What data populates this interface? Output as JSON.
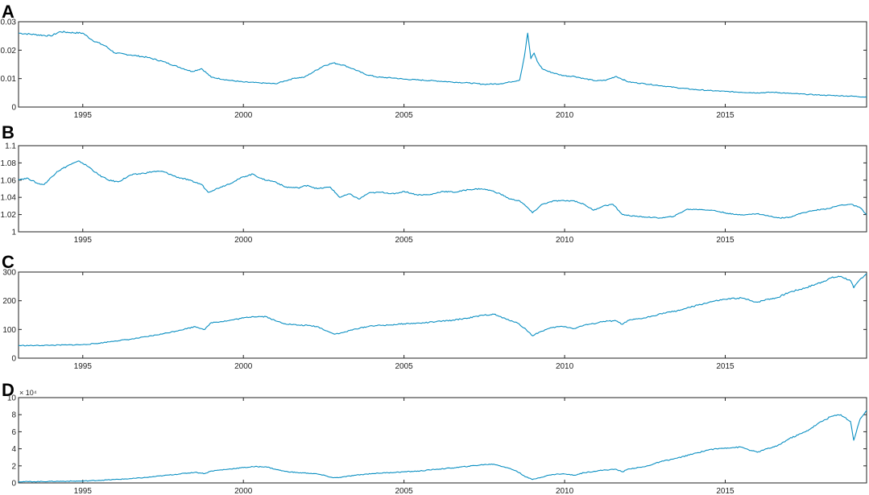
{
  "colors": {
    "series": "#0a8fc2",
    "axis": "#222222"
  },
  "chart_data": [
    {
      "id": "A",
      "label": "A",
      "type": "line",
      "xlim": [
        1993.0,
        2019.4
      ],
      "ylim": [
        0,
        0.03
      ],
      "xticks": [
        1995,
        2000,
        2005,
        2010,
        2015
      ],
      "yticks": [
        0,
        0.01,
        0.02,
        0.03
      ],
      "ytick_labels": [
        "0",
        "0.01",
        "0.02",
        "0.03"
      ],
      "exponent_label": "",
      "x": [
        1993.0,
        1993.5,
        1994.0,
        1994.3,
        1994.6,
        1995.0,
        1995.3,
        1995.7,
        1996.0,
        1996.5,
        1997.0,
        1997.5,
        1998.0,
        1998.4,
        1998.7,
        1999.0,
        1999.5,
        2000.0,
        2000.5,
        2001.0,
        2001.3,
        2001.6,
        2001.9,
        2002.2,
        2002.5,
        2002.8,
        2003.1,
        2003.4,
        2003.8,
        2004.2,
        2004.7,
        2005.0,
        2005.5,
        2006.0,
        2006.5,
        2007.0,
        2007.5,
        2008.0,
        2008.3,
        2008.6,
        2008.75,
        2008.85,
        2008.95,
        2009.05,
        2009.15,
        2009.3,
        2009.5,
        2009.8,
        2010.0,
        2010.3,
        2010.6,
        2011.0,
        2011.3,
        2011.6,
        2011.75,
        2012.0,
        2012.5,
        2013.0,
        2013.5,
        2014.0,
        2014.5,
        2015.0,
        2015.5,
        2016.0,
        2016.5,
        2017.0,
        2017.5,
        2018.0,
        2018.5,
        2019.0,
        2019.4
      ],
      "y": [
        0.026,
        0.0255,
        0.025,
        0.0265,
        0.0262,
        0.026,
        0.0235,
        0.0215,
        0.019,
        0.0183,
        0.0175,
        0.016,
        0.014,
        0.0125,
        0.0135,
        0.0105,
        0.0095,
        0.0088,
        0.0085,
        0.0082,
        0.0092,
        0.0102,
        0.0105,
        0.0125,
        0.0145,
        0.0155,
        0.0148,
        0.0135,
        0.0115,
        0.0105,
        0.0102,
        0.0098,
        0.0095,
        0.0092,
        0.0088,
        0.0085,
        0.008,
        0.0082,
        0.0088,
        0.0095,
        0.018,
        0.026,
        0.017,
        0.019,
        0.016,
        0.0135,
        0.0125,
        0.0115,
        0.011,
        0.0108,
        0.01,
        0.0092,
        0.0095,
        0.0108,
        0.01,
        0.0088,
        0.0082,
        0.0075,
        0.0068,
        0.0062,
        0.0058,
        0.0055,
        0.0052,
        0.005,
        0.0052,
        0.0048,
        0.0045,
        0.0042,
        0.004,
        0.0038,
        0.0035
      ]
    },
    {
      "id": "B",
      "label": "B",
      "type": "line",
      "xlim": [
        1993.0,
        2019.4
      ],
      "ylim": [
        1,
        1.1
      ],
      "xticks": [
        1995,
        2000,
        2005,
        2010,
        2015
      ],
      "yticks": [
        1,
        1.02,
        1.04,
        1.06,
        1.08,
        1.1
      ],
      "ytick_labels": [
        "1",
        "1.02",
        "1.04",
        "1.06",
        "1.08",
        "1.1"
      ],
      "exponent_label": "",
      "x": [
        1993.0,
        1993.3,
        1993.6,
        1993.8,
        1994.2,
        1994.6,
        1994.9,
        1995.2,
        1995.5,
        1995.8,
        1996.1,
        1996.5,
        1996.9,
        1997.2,
        1997.5,
        1997.9,
        1998.3,
        1998.7,
        1998.9,
        1999.3,
        1999.7,
        2000.0,
        2000.3,
        2000.6,
        2001.0,
        2001.3,
        2001.7,
        2002.0,
        2002.3,
        2002.7,
        2003.0,
        2003.3,
        2003.6,
        2003.9,
        2004.3,
        2004.7,
        2005.0,
        2005.4,
        2005.8,
        2006.2,
        2006.6,
        2007.0,
        2007.4,
        2007.7,
        2008.0,
        2008.3,
        2008.6,
        2008.85,
        2009.0,
        2009.3,
        2009.7,
        2010.0,
        2010.3,
        2010.6,
        2010.9,
        2011.2,
        2011.5,
        2011.8,
        2012.2,
        2012.6,
        2013.0,
        2013.4,
        2013.8,
        2014.2,
        2014.6,
        2015.0,
        2015.3,
        2015.7,
        2016.0,
        2016.4,
        2016.7,
        2017.0,
        2017.4,
        2017.8,
        2018.2,
        2018.6,
        2018.9,
        2019.2,
        2019.4
      ],
      "y": [
        1.061,
        1.062,
        1.056,
        1.055,
        1.07,
        1.078,
        1.082,
        1.075,
        1.066,
        1.06,
        1.058,
        1.066,
        1.068,
        1.07,
        1.07,
        1.064,
        1.06,
        1.055,
        1.046,
        1.052,
        1.058,
        1.064,
        1.067,
        1.061,
        1.058,
        1.052,
        1.051,
        1.054,
        1.05,
        1.052,
        1.04,
        1.044,
        1.038,
        1.045,
        1.046,
        1.044,
        1.047,
        1.043,
        1.043,
        1.047,
        1.046,
        1.049,
        1.05,
        1.048,
        1.044,
        1.038,
        1.036,
        1.028,
        1.022,
        1.032,
        1.036,
        1.036,
        1.036,
        1.032,
        1.025,
        1.03,
        1.032,
        1.02,
        1.018,
        1.017,
        1.016,
        1.018,
        1.026,
        1.026,
        1.025,
        1.022,
        1.02,
        1.02,
        1.021,
        1.018,
        1.016,
        1.017,
        1.022,
        1.025,
        1.027,
        1.031,
        1.032,
        1.028,
        1.02
      ]
    },
    {
      "id": "C",
      "label": "C",
      "type": "line",
      "xlim": [
        1993.0,
        2019.4
      ],
      "ylim": [
        0,
        300
      ],
      "xticks": [
        1995,
        2000,
        2005,
        2010,
        2015
      ],
      "yticks": [
        0,
        100,
        200,
        300
      ],
      "ytick_labels": [
        "0",
        "100",
        "200",
        "300"
      ],
      "exponent_label": "",
      "x": [
        1993.0,
        1993.5,
        1994.0,
        1994.5,
        1995.0,
        1995.5,
        1996.0,
        1996.5,
        1997.0,
        1997.5,
        1998.0,
        1998.5,
        1998.8,
        1999.0,
        1999.5,
        2000.0,
        2000.3,
        2000.7,
        2001.0,
        2001.3,
        2001.7,
        2002.0,
        2002.3,
        2002.6,
        2002.8,
        2003.0,
        2003.5,
        2004.0,
        2004.5,
        2005.0,
        2005.5,
        2006.0,
        2006.5,
        2007.0,
        2007.5,
        2007.8,
        2008.2,
        2008.5,
        2008.8,
        2009.0,
        2009.2,
        2009.5,
        2009.8,
        2010.0,
        2010.3,
        2010.6,
        2010.9,
        2011.2,
        2011.6,
        2011.8,
        2012.0,
        2012.5,
        2013.0,
        2013.5,
        2014.0,
        2014.5,
        2015.0,
        2015.5,
        2015.8,
        2016.0,
        2016.3,
        2016.6,
        2017.0,
        2017.5,
        2018.0,
        2018.3,
        2018.6,
        2018.9,
        2019.0,
        2019.2,
        2019.4
      ],
      "y": [
        44,
        44,
        45,
        46,
        47,
        52,
        60,
        66,
        75,
        85,
        97,
        110,
        100,
        124,
        130,
        140,
        145,
        145,
        130,
        120,
        115,
        114,
        110,
        95,
        85,
        86,
        102,
        113,
        115,
        120,
        122,
        127,
        132,
        140,
        150,
        153,
        135,
        125,
        100,
        78,
        90,
        103,
        110,
        110,
        103,
        115,
        120,
        128,
        130,
        118,
        132,
        140,
        155,
        165,
        180,
        195,
        205,
        210,
        200,
        195,
        205,
        210,
        230,
        245,
        265,
        280,
        285,
        270,
        245,
        275,
        295
      ]
    },
    {
      "id": "D",
      "label": "D",
      "type": "line",
      "xlim": [
        1993.0,
        2019.4
      ],
      "ylim": [
        0,
        100000
      ],
      "xticks": [
        1995,
        2000,
        2005,
        2010,
        2015
      ],
      "yticks": [
        0,
        20000,
        40000,
        60000,
        80000,
        100000
      ],
      "ytick_labels": [
        "0",
        "2",
        "4",
        "6",
        "8",
        "10"
      ],
      "exponent_label": "× 10⁴",
      "x": [
        1993.0,
        1993.5,
        1994.0,
        1994.5,
        1995.0,
        1995.5,
        1996.0,
        1996.5,
        1997.0,
        1997.5,
        1998.0,
        1998.5,
        1998.8,
        1999.0,
        1999.5,
        2000.0,
        2000.3,
        2000.7,
        2001.0,
        2001.3,
        2001.7,
        2002.0,
        2002.3,
        2002.6,
        2002.8,
        2003.0,
        2003.5,
        2004.0,
        2004.5,
        2005.0,
        2005.5,
        2006.0,
        2006.5,
        2007.0,
        2007.5,
        2007.8,
        2008.2,
        2008.5,
        2008.8,
        2009.0,
        2009.2,
        2009.5,
        2009.8,
        2010.0,
        2010.3,
        2010.6,
        2010.9,
        2011.2,
        2011.6,
        2011.8,
        2012.0,
        2012.5,
        2013.0,
        2013.5,
        2014.0,
        2014.5,
        2015.0,
        2015.5,
        2015.8,
        2016.0,
        2016.3,
        2016.6,
        2017.0,
        2017.5,
        2018.0,
        2018.3,
        2018.6,
        2018.9,
        2019.0,
        2019.2,
        2019.4
      ],
      "y": [
        1500,
        1500,
        1800,
        2000,
        2200,
        3000,
        4000,
        5000,
        6500,
        8500,
        10500,
        12500,
        11000,
        14000,
        16000,
        18000,
        19000,
        19000,
        16000,
        13500,
        12000,
        11500,
        10500,
        8000,
        6000,
        6500,
        9000,
        11000,
        12000,
        13000,
        14000,
        16000,
        17500,
        19500,
        21500,
        22000,
        18000,
        14000,
        7000,
        4000,
        6000,
        9000,
        10500,
        10500,
        9000,
        12000,
        13500,
        15000,
        16000,
        13000,
        16500,
        19000,
        25000,
        29000,
        34000,
        39000,
        41000,
        42000,
        38000,
        36000,
        40000,
        43000,
        52000,
        60000,
        72000,
        78000,
        80000,
        72000,
        50000,
        75000,
        85000
      ]
    }
  ]
}
